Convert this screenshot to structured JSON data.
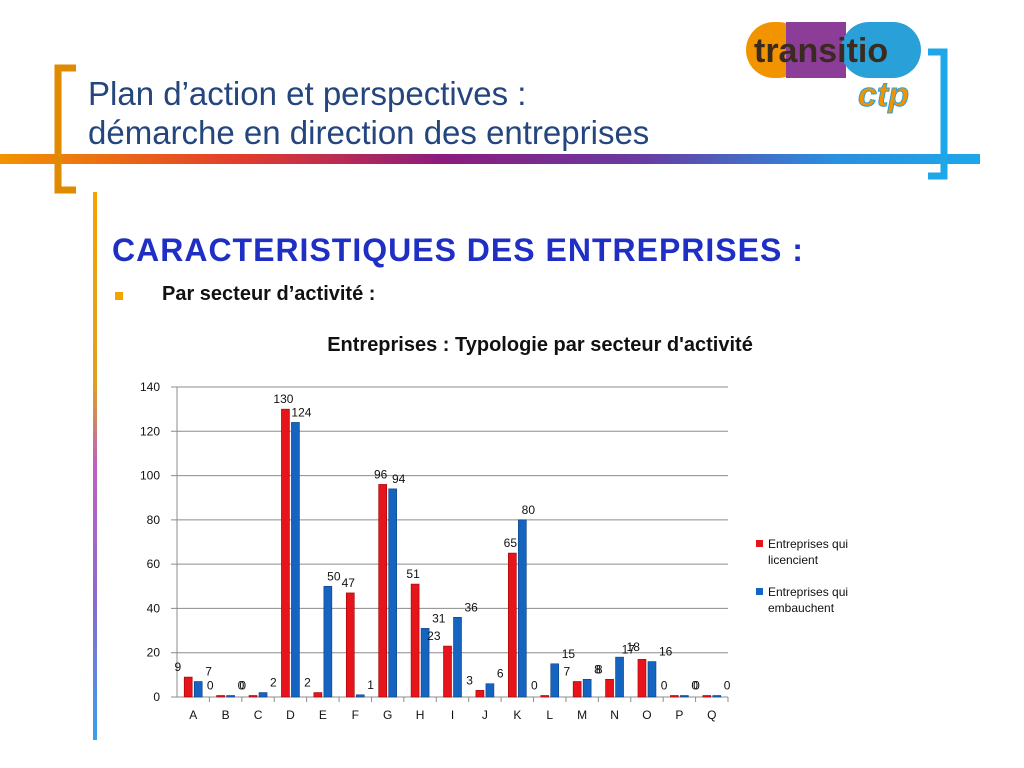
{
  "slide": {
    "title_line1": "Plan d’action et perspectives :",
    "title_line2": "démarche en direction des entreprises",
    "heading": "CARACTERISTIQUES DES ENTREPRISES :",
    "bullet": "Par secteur d’activité :"
  },
  "logo": {
    "text_main": "transitio",
    "text_sub": "ctp",
    "colors": [
      "#f29400",
      "#8b3d98",
      "#2aa0d8"
    ]
  },
  "colors": {
    "title": "#24457d",
    "heading": "#1f2fc4",
    "bracket_left": "#e08a00",
    "bracket_right": "#1ea7e8",
    "series_red": "#e8141b",
    "series_blue": "#1565c0"
  },
  "chart_data": {
    "type": "bar",
    "title": "Entreprises : Typologie par secteur d'activité",
    "categories": [
      "A",
      "B",
      "C",
      "D",
      "E",
      "F",
      "G",
      "H",
      "I",
      "J",
      "K",
      "L",
      "M",
      "N",
      "O",
      "P",
      "Q"
    ],
    "series": [
      {
        "name": "Entreprises qui licencient",
        "color": "#e8141b",
        "values": [
          9,
          0,
          0,
          130,
          2,
          47,
          96,
          51,
          23,
          3,
          65,
          0,
          7,
          8,
          17,
          0,
          0
        ]
      },
      {
        "name": "Entreprises qui embauchent",
        "color": "#1565c0",
        "values": [
          7,
          0,
          2,
          124,
          50,
          1,
          94,
          31,
          36,
          6,
          80,
          15,
          8,
          18,
          16,
          0,
          0
        ]
      }
    ],
    "ylim": [
      0,
      140
    ],
    "yticks": [
      0,
      20,
      40,
      60,
      80,
      100,
      120,
      140
    ],
    "grid": true,
    "legend_position": "right"
  }
}
